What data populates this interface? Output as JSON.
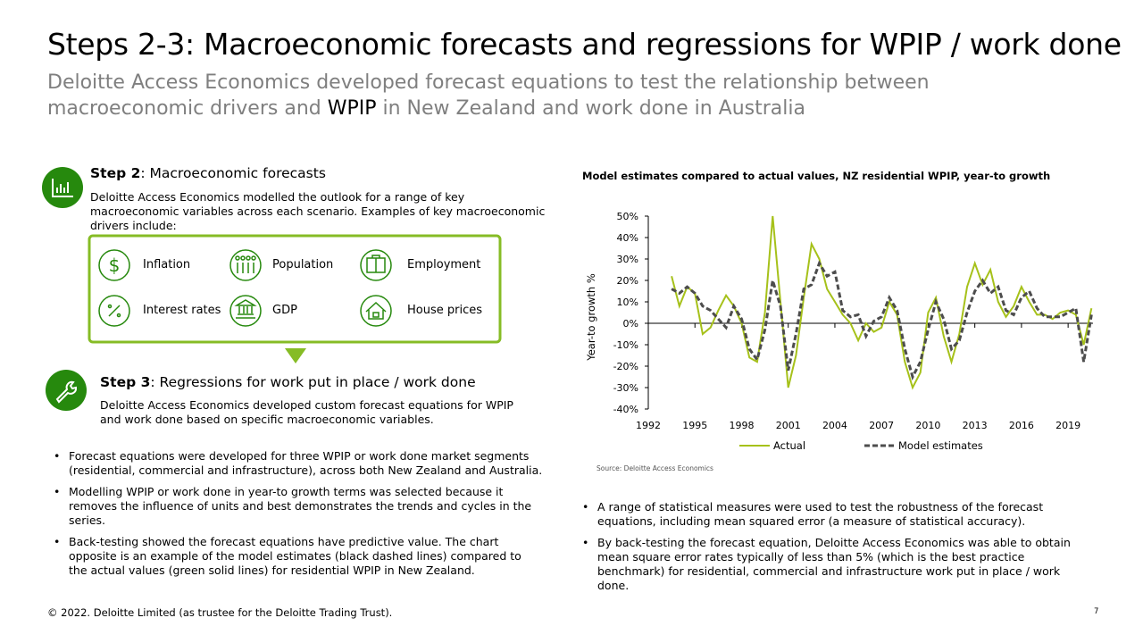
{
  "header": {
    "title": "Steps 2-3: Macroeconomic forecasts and regressions for WPIP / work done",
    "subtitle_parts": [
      "Deloitte Access Economics developed forecast equations to test the relationship between macroeconomic drivers and ",
      "WPIP",
      " in New Zealand and work done in Australia"
    ]
  },
  "step2": {
    "label": "Step 2",
    "heading": ": Macroeconomic forecasts",
    "text": "Deloitte Access Economics modelled the outlook for a range of key macroeconomic variables across each scenario. Examples of key macroeconomic drivers include:",
    "drivers": [
      "Inflation",
      "Population",
      "Employment",
      "Interest rates",
      "GDP",
      "House prices"
    ]
  },
  "step3": {
    "label": "Step 3",
    "heading": ": Regressions for work put in place / work done",
    "text": "Deloitte Access Economics developed custom forecast equations for WPIP and work done based on specific macroeconomic variables."
  },
  "left_bullets": [
    "Forecast equations were developed for three WPIP or work done market segments (residential, commercial and infrastructure), across both New Zealand and Australia.",
    "Modelling WPIP or work done in year-to growth terms was selected because it removes the influence of units and best demonstrates the trends and cycles in the series.",
    "Back-testing showed the forecast equations have predictive value. The chart opposite is an example of the model estimates (black dashed lines) compared to the actual values (green solid lines) for residential WPIP in New Zealand."
  ],
  "chart_data": {
    "type": "line",
    "title": "Model estimates compared to actual values, NZ residential WPIP, year-to growth",
    "y_label": "Year-to growth %",
    "source": "Source: Deloitte Access Economics",
    "x": [
      1993.5,
      1994,
      1994.5,
      1995,
      1995.5,
      1996,
      1996.5,
      1997,
      1997.5,
      1998,
      1998.5,
      1999,
      1999.5,
      2000,
      2000.5,
      2001,
      2001.5,
      2002,
      2002.5,
      2003,
      2003.5,
      2004,
      2004.5,
      2005,
      2005.5,
      2006,
      2006.5,
      2007,
      2007.5,
      2008,
      2008.5,
      2009,
      2009.5,
      2010,
      2010.5,
      2011,
      2011.5,
      2012,
      2012.5,
      2013,
      2013.5,
      2014,
      2014.5,
      2015,
      2015.5,
      2016,
      2016.5,
      2017,
      2017.5,
      2018,
      2018.5,
      2019,
      2019.5,
      2020,
      2020.5
    ],
    "series": [
      {
        "name": "Actual",
        "color": "#a6c11a",
        "style": "solid",
        "values": [
          22,
          8,
          17,
          14,
          -5,
          -2,
          6,
          13,
          8,
          0,
          -16,
          -18,
          5,
          50,
          10,
          -30,
          -15,
          12,
          37,
          30,
          16,
          10,
          4,
          0,
          -8,
          0,
          -4,
          -2,
          10,
          4,
          -18,
          -30,
          -23,
          5,
          12,
          -6,
          -18,
          -5,
          17,
          28,
          18,
          25,
          10,
          3,
          8,
          17,
          10,
          4,
          4,
          2,
          5,
          6,
          4,
          -10,
          7
        ]
      },
      {
        "name": "Model estimates",
        "color": "#4d4d4d",
        "style": "dashed",
        "values": [
          16,
          14,
          17,
          14,
          8,
          6,
          2,
          -2,
          8,
          2,
          -12,
          -17,
          -3,
          20,
          8,
          -22,
          -5,
          16,
          18,
          28,
          22,
          24,
          6,
          3,
          4,
          -6,
          1,
          3,
          12,
          6,
          -12,
          -25,
          -18,
          -3,
          10,
          2,
          -12,
          -8,
          5,
          15,
          20,
          14,
          17,
          6,
          4,
          12,
          15,
          7,
          3,
          3,
          3,
          5,
          7,
          -18,
          4
        ]
      }
    ],
    "xlim": [
      1992,
      2020.6
    ],
    "xticks": [
      1992,
      1995,
      1998,
      2001,
      2004,
      2007,
      2010,
      2013,
      2016,
      2019
    ],
    "ylim": [
      -40,
      50
    ],
    "yticks": [
      {
        "value": -40,
        "label": "-40%"
      },
      {
        "value": -30,
        "label": "-30%"
      },
      {
        "value": -20,
        "label": "-20%"
      },
      {
        "value": -10,
        "label": "-10%"
      },
      {
        "value": 0,
        "label": "0%"
      },
      {
        "value": 10,
        "label": "10%"
      },
      {
        "value": 20,
        "label": "20%"
      },
      {
        "value": 30,
        "label": "30%"
      },
      {
        "value": 40,
        "label": "40%"
      },
      {
        "value": 50,
        "label": "50%"
      }
    ]
  },
  "right_bullets": [
    "A range of statistical measures were used to test the robustness of the forecast equations, including mean squared error (a measure of statistical accuracy).",
    "By back-testing the forecast equation, Deloitte Access Economics was able to obtain mean square error rates typically of less than 5% (which is the best practice benchmark) for residential, commercial and infrastructure work put in place / work done."
  ],
  "footer": {
    "copyright": "© 2022. Deloitte Limited (as trustee for the Deloitte Trading Trust).",
    "page": "7"
  }
}
